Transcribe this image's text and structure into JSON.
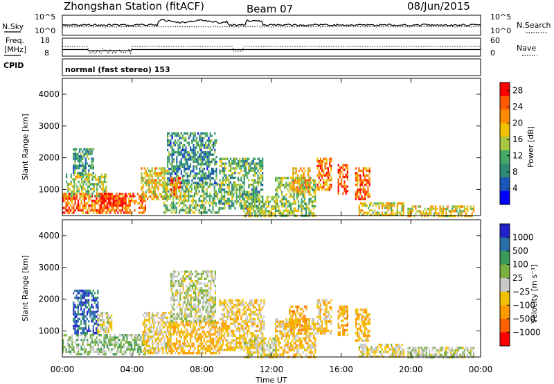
{
  "header": {
    "station": "Zhongshan Station (fitACF)",
    "beam": "Beam 07",
    "date": "08/Jun/2015"
  },
  "strip_labels": {
    "nsky": "N.Sky",
    "nsearch": "N.Search",
    "freq_line1": "Freq.",
    "freq_line2": "[MHz]",
    "nave": "Nave",
    "cpid": "CPID",
    "mode": "normal (fast stereo) 153",
    "nsky_ticks": [
      "10^5",
      "10^0"
    ],
    "nsearch_ticks": [
      "10^5",
      "10^0"
    ],
    "freq_ticks": [
      "18",
      "8"
    ],
    "nave_ticks": [
      "60",
      "0"
    ]
  },
  "chart_data": [
    {
      "type": "heatmap",
      "title": "",
      "xlabel": "",
      "ylabel": "Slant Range [km]",
      "x_ticks": [
        "00:00",
        "04:00",
        "08:00",
        "12:00",
        "16:00",
        "20:00",
        "00:00"
      ],
      "xlim_hours": [
        0,
        24
      ],
      "ylim": [
        180,
        4500
      ],
      "y_ticks": [
        1000,
        2000,
        3000,
        4000
      ],
      "colorbar": {
        "label": "Power [dB]",
        "ticks": [
          "4",
          "8",
          "12",
          "16",
          "20",
          "24",
          "28"
        ],
        "colors": [
          "#0000ff",
          "#1a57b8",
          "#2e8a72",
          "#44a866",
          "#a8c840",
          "#f0c000",
          "#ff8c00",
          "#ff5a00",
          "#ff0000"
        ],
        "range": [
          0,
          30
        ]
      },
      "echo_regions": [
        {
          "t0": 0.0,
          "t1": 4.8,
          "r0": 250,
          "r1": 900,
          "value": 24
        },
        {
          "t0": 0.2,
          "t1": 2.5,
          "r0": 800,
          "r1": 1500,
          "value": 15
        },
        {
          "t0": 0.6,
          "t1": 1.8,
          "r0": 1500,
          "r1": 2300,
          "value": 10
        },
        {
          "t0": 2.2,
          "t1": 3.6,
          "r0": 500,
          "r1": 900,
          "value": 28
        },
        {
          "t0": 4.5,
          "t1": 6.0,
          "r0": 700,
          "r1": 1700,
          "value": 18
        },
        {
          "t0": 5.8,
          "t1": 9.0,
          "r0": 300,
          "r1": 1200,
          "value": 13
        },
        {
          "t0": 6.0,
          "t1": 8.8,
          "r0": 1200,
          "r1": 2800,
          "value": 9
        },
        {
          "t0": 6.2,
          "t1": 6.8,
          "r0": 700,
          "r1": 1400,
          "value": 24
        },
        {
          "t0": 9.0,
          "t1": 11.5,
          "r0": 400,
          "r1": 2000,
          "value": 12
        },
        {
          "t0": 10.4,
          "t1": 12.3,
          "r0": 200,
          "r1": 800,
          "value": 15
        },
        {
          "t0": 12.2,
          "t1": 14.5,
          "r0": 200,
          "r1": 1400,
          "value": 14
        },
        {
          "t0": 13.2,
          "t1": 14.2,
          "r0": 900,
          "r1": 1700,
          "value": 20
        },
        {
          "t0": 14.6,
          "t1": 15.4,
          "r0": 1000,
          "r1": 2000,
          "value": 23
        },
        {
          "t0": 15.8,
          "t1": 16.4,
          "r0": 900,
          "r1": 1800,
          "value": 26
        },
        {
          "t0": 16.8,
          "t1": 17.6,
          "r0": 700,
          "r1": 1700,
          "value": 24
        },
        {
          "t0": 17.0,
          "t1": 19.6,
          "r0": 200,
          "r1": 600,
          "value": 17
        },
        {
          "t0": 19.8,
          "t1": 23.6,
          "r0": 200,
          "r1": 500,
          "value": 18
        }
      ]
    },
    {
      "type": "heatmap",
      "title": "",
      "xlabel": "Time UT",
      "ylabel": "Slant Range [km]",
      "x_ticks": [
        "00:00",
        "04:00",
        "08:00",
        "12:00",
        "16:00",
        "20:00",
        "00:00"
      ],
      "xlim_hours": [
        0,
        24
      ],
      "ylim": [
        180,
        4500
      ],
      "y_ticks": [
        1000,
        2000,
        3000,
        4000
      ],
      "colorbar": {
        "label": "Velocity [m s⁻¹]",
        "ticks": [
          "1000",
          "500",
          "100",
          "25",
          "−25",
          "−100",
          "−500",
          "−1000"
        ],
        "colors": [
          "#2222cc",
          "#2a70a8",
          "#3a9a5a",
          "#7ab040",
          "#c8c8c8",
          "#f0c000",
          "#ff9a00",
          "#ff6000",
          "#ff0000"
        ],
        "range": [
          -1000,
          1000
        ]
      },
      "echo_regions": [
        {
          "t0": 0.0,
          "t1": 4.8,
          "r0": 250,
          "r1": 900,
          "value": 180
        },
        {
          "t0": 0.6,
          "t1": 2.0,
          "r0": 900,
          "r1": 2300,
          "value": 700
        },
        {
          "t0": 2.0,
          "t1": 2.8,
          "r0": 1000,
          "r1": 1600,
          "value": -80
        },
        {
          "t0": 4.6,
          "t1": 6.2,
          "r0": 300,
          "r1": 1600,
          "value": -120
        },
        {
          "t0": 6.0,
          "t1": 9.0,
          "r0": 300,
          "r1": 1300,
          "value": -300
        },
        {
          "t0": 6.2,
          "t1": 8.8,
          "r0": 1300,
          "r1": 2900,
          "value": 60
        },
        {
          "t0": 9.0,
          "t1": 11.6,
          "r0": 400,
          "r1": 2000,
          "value": -180
        },
        {
          "t0": 10.4,
          "t1": 12.3,
          "r0": 200,
          "r1": 800,
          "value": -60
        },
        {
          "t0": 12.2,
          "t1": 14.5,
          "r0": 200,
          "r1": 1400,
          "value": -220
        },
        {
          "t0": 13.0,
          "t1": 14.0,
          "r0": 1000,
          "r1": 1800,
          "value": -400
        },
        {
          "t0": 14.6,
          "t1": 15.4,
          "r0": 900,
          "r1": 2000,
          "value": -200
        },
        {
          "t0": 15.8,
          "t1": 16.4,
          "r0": 900,
          "r1": 1800,
          "value": -350
        },
        {
          "t0": 16.8,
          "t1": 17.6,
          "r0": 700,
          "r1": 1700,
          "value": -300
        },
        {
          "t0": 17.0,
          "t1": 19.6,
          "r0": 200,
          "r1": 600,
          "value": -100
        },
        {
          "t0": 19.8,
          "t1": 23.6,
          "r0": 200,
          "r1": 500,
          "value": 80
        }
      ]
    }
  ]
}
